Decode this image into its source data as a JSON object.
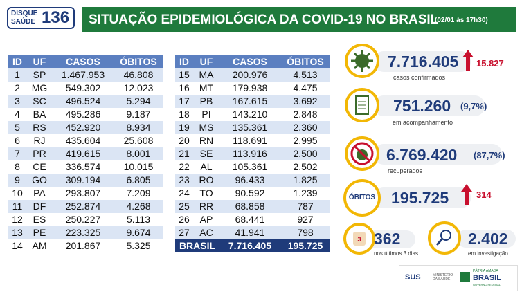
{
  "header": {
    "logo": {
      "line1": "DISQUE",
      "line2": "SAÚDE",
      "number": "136"
    },
    "title": "SITUAÇÃO EPIDEMIOLÓGICA DA COVID-19 NO BRASIL",
    "timestamp": "(02/01 às 17h30)"
  },
  "tables": [
    {
      "columns": [
        "ID",
        "UF",
        "CASOS",
        "ÓBITOS"
      ],
      "rows": [
        [
          "1",
          "SP",
          "1.467.953",
          "46.808"
        ],
        [
          "2",
          "MG",
          "549.302",
          "12.023"
        ],
        [
          "3",
          "SC",
          "496.524",
          "5.294"
        ],
        [
          "4",
          "BA",
          "495.286",
          "9.187"
        ],
        [
          "5",
          "RS",
          "452.920",
          "8.934"
        ],
        [
          "6",
          "RJ",
          "435.604",
          "25.608"
        ],
        [
          "7",
          "PR",
          "419.615",
          "8.001"
        ],
        [
          "8",
          "CE",
          "336.574",
          "10.015"
        ],
        [
          "9",
          "GO",
          "309.194",
          "6.805"
        ],
        [
          "10",
          "PA",
          "293.807",
          "7.209"
        ],
        [
          "11",
          "DF",
          "252.874",
          "4.268"
        ],
        [
          "12",
          "ES",
          "250.227",
          "5.113"
        ],
        [
          "13",
          "PE",
          "223.325",
          "9.674"
        ],
        [
          "14",
          "AM",
          "201.867",
          "5.325"
        ]
      ]
    },
    {
      "columns": [
        "ID",
        "UF",
        "CASOS",
        "ÓBITOS"
      ],
      "rows": [
        [
          "15",
          "MA",
          "200.976",
          "4.513"
        ],
        [
          "16",
          "MT",
          "179.938",
          "4.475"
        ],
        [
          "17",
          "PB",
          "167.615",
          "3.692"
        ],
        [
          "18",
          "PI",
          "143.210",
          "2.848"
        ],
        [
          "19",
          "MS",
          "135.361",
          "2.360"
        ],
        [
          "20",
          "RN",
          "118.691",
          "2.995"
        ],
        [
          "21",
          "SE",
          "113.916",
          "2.500"
        ],
        [
          "22",
          "AL",
          "105.361",
          "2.502"
        ],
        [
          "23",
          "RO",
          "96.433",
          "1.825"
        ],
        [
          "24",
          "TO",
          "90.592",
          "1.239"
        ],
        [
          "25",
          "RR",
          "68.858",
          "787"
        ],
        [
          "26",
          "AP",
          "68.441",
          "927"
        ],
        [
          "27",
          "AC",
          "41.941",
          "798"
        ]
      ],
      "total": [
        "BRASIL",
        "7.716.405",
        "195.725"
      ]
    }
  ],
  "stats": {
    "confirmed": {
      "value": "7.716.405",
      "new": "15.827",
      "caption": "casos confirmados"
    },
    "monitoring": {
      "value": "751.260",
      "percent": "(9,7%)",
      "caption": "em acompanhamento"
    },
    "recovered": {
      "value": "6.769.420",
      "percent": "(87,7%)",
      "caption": "recuperados"
    },
    "deaths": {
      "label": "ÓBITOS",
      "value": "195.725",
      "new": "314"
    },
    "recent": {
      "value": "362",
      "caption": "nos últimos 3 dias",
      "icon": "3"
    },
    "investigation": {
      "value": "2.402",
      "caption": "em investigação"
    }
  },
  "footer": {
    "sus": "SUS",
    "ministry": "MINISTÉRIO DA SAÚDE",
    "slogan": "PÁTRIA AMADA",
    "brasil": "BRASIL",
    "gov": "GOVERNO FEDERAL"
  }
}
